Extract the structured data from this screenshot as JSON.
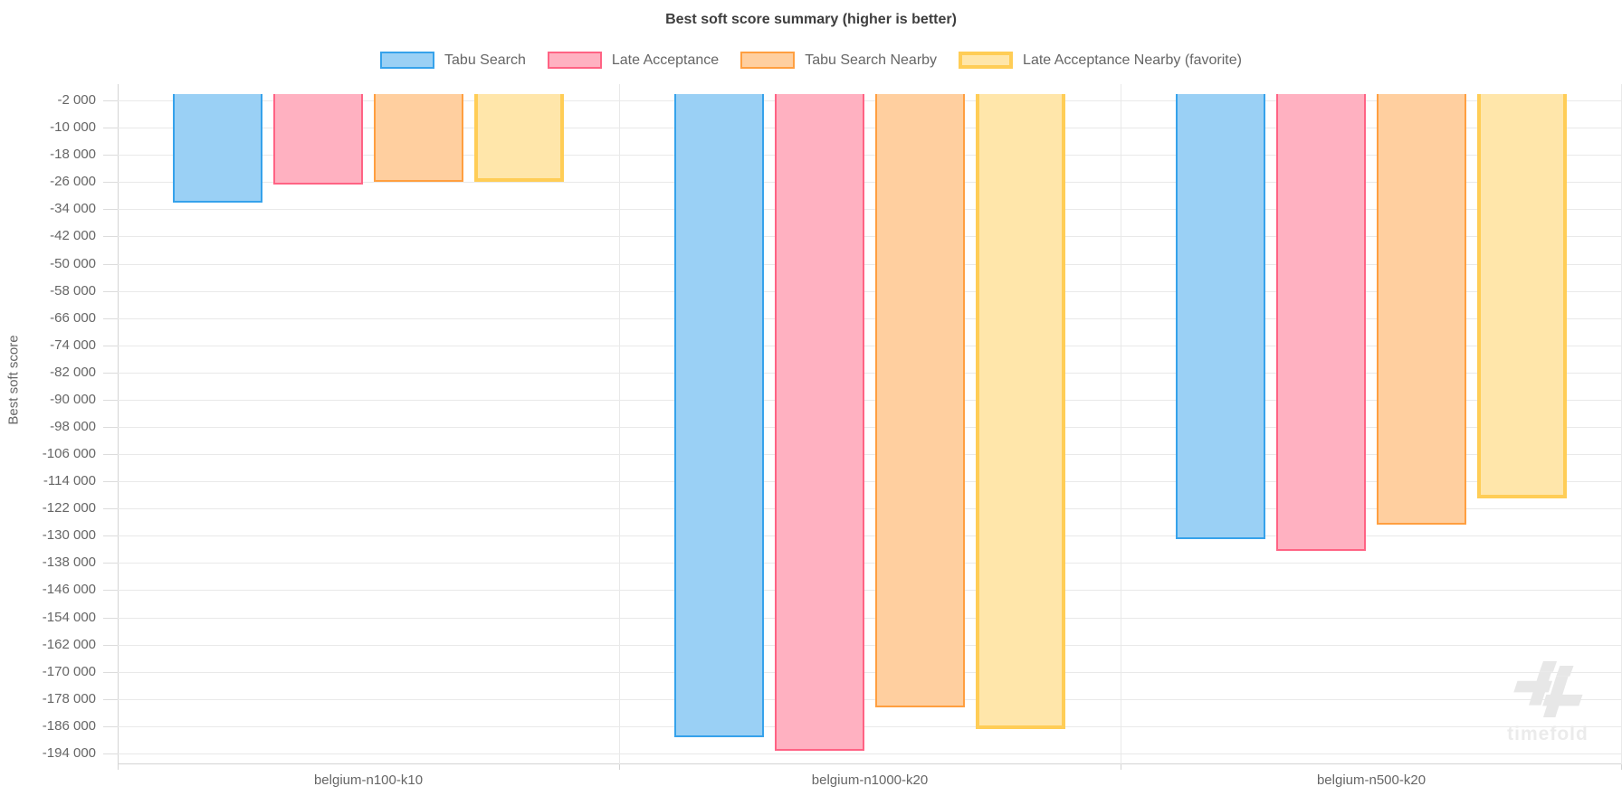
{
  "watermark": "timefold",
  "chart_data": {
    "type": "bar",
    "title": "Best soft score summary (higher is better)",
    "xlabel": "",
    "ylabel": "Best soft score",
    "categories": [
      "belgium-n100-k10",
      "belgium-n1000-k20",
      "belgium-n500-k20"
    ],
    "series": [
      {
        "name": "Tabu Search",
        "fill": "#9ad0f5",
        "border": "#36a2eb",
        "border_width": 2,
        "favorite": false,
        "values": [
          -32000,
          -189100,
          -131000
        ]
      },
      {
        "name": "Late Acceptance",
        "fill": "#ffb1c1",
        "border": "#ff6384",
        "border_width": 2,
        "favorite": false,
        "values": [
          -26700,
          -193300,
          -134400
        ]
      },
      {
        "name": "Tabu Search Nearby",
        "fill": "#ffcf9f",
        "border": "#ff9f40",
        "border_width": 2,
        "favorite": false,
        "values": [
          -25900,
          -180400,
          -126700
        ]
      },
      {
        "name": "Late Acceptance Nearby (favorite)",
        "fill": "#ffe6aa",
        "border": "#ffcd56",
        "border_width": 4,
        "favorite": true,
        "values": [
          -26000,
          -186800,
          -119000
        ]
      }
    ],
    "bar_base": 0,
    "ylim": [
      -197200,
      2800
    ],
    "yticks": [
      -2000,
      -10000,
      -18000,
      -26000,
      -34000,
      -42000,
      -50000,
      -58000,
      -66000,
      -74000,
      -82000,
      -90000,
      -98000,
      -106000,
      -114000,
      -122000,
      -130000,
      -138000,
      -146000,
      -154000,
      -162000,
      -170000,
      -178000,
      -186000,
      -194000
    ],
    "ytick_labels": [
      "-2 000",
      "-10 000",
      "-18 000",
      "-26 000",
      "-34 000",
      "-42 000",
      "-50 000",
      "-58 000",
      "-66 000",
      "-74 000",
      "-82 000",
      "-90 000",
      "-98 000",
      "-106 000",
      "-114 000",
      "-122 000",
      "-130 000",
      "-138 000",
      "-146 000",
      "-154 000",
      "-162 000",
      "-170 000",
      "-178 000",
      "-186 000",
      "-194 000"
    ],
    "grid": true,
    "legend_position": "top"
  }
}
